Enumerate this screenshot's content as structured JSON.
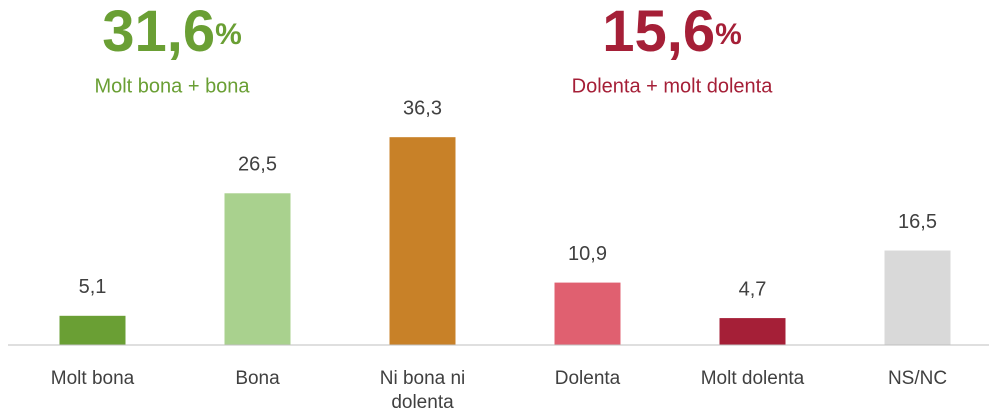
{
  "chart_data": {
    "type": "bar",
    "categories": [
      "Molt bona",
      "Bona",
      "Ni bona ni dolenta",
      "Dolenta",
      "Molt dolenta",
      "NS/NC"
    ],
    "values": [
      5.1,
      26.5,
      36.3,
      10.9,
      4.7,
      16.5
    ],
    "value_labels": [
      "5,1",
      "26,5",
      "36,3",
      "10,9",
      "4,7",
      "16,5"
    ],
    "colors": [
      "#6a9f34",
      "#a9d18e",
      "#c88128",
      "#e06070",
      "#a51f37",
      "#d9d9d9"
    ],
    "ylim": [
      0,
      40
    ],
    "annotations": [
      {
        "number": "31,6",
        "unit": "%",
        "text": "Molt bona + bona",
        "color": "#6a9f34"
      },
      {
        "number": "15,6",
        "unit": "%",
        "text": "Dolenta + molt dolenta",
        "color": "#a51f37"
      }
    ]
  }
}
